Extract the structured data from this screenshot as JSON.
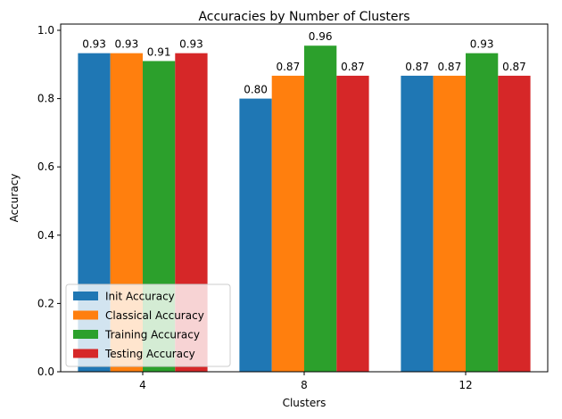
{
  "chart_data": {
    "type": "bar",
    "title": "Accuracies by Number of Clusters",
    "xlabel": "Clusters",
    "ylabel": "Accuracy",
    "categories": [
      "4",
      "8",
      "12"
    ],
    "ylim": [
      0,
      1.0
    ],
    "yticks": [
      "0.0",
      "0.2",
      "0.4",
      "0.6",
      "0.8",
      "1.0"
    ],
    "grid": false,
    "legend_position": "lower-left",
    "series": [
      {
        "name": "Init Accuracy",
        "color": "#1f77b4",
        "values": [
          0.933,
          0.8,
          0.867
        ],
        "labels": [
          "0.93",
          "0.80",
          "0.87"
        ]
      },
      {
        "name": "Classical Accuracy",
        "color": "#ff7f0e",
        "values": [
          0.933,
          0.867,
          0.867
        ],
        "labels": [
          "0.93",
          "0.87",
          "0.87"
        ]
      },
      {
        "name": "Training Accuracy",
        "color": "#2ca02c",
        "values": [
          0.91,
          0.955,
          0.933
        ],
        "labels": [
          "0.91",
          "0.96",
          "0.93"
        ]
      },
      {
        "name": "Testing Accuracy",
        "color": "#d62728",
        "values": [
          0.933,
          0.867,
          0.867
        ],
        "labels": [
          "0.93",
          "0.87",
          "0.87"
        ]
      }
    ]
  }
}
